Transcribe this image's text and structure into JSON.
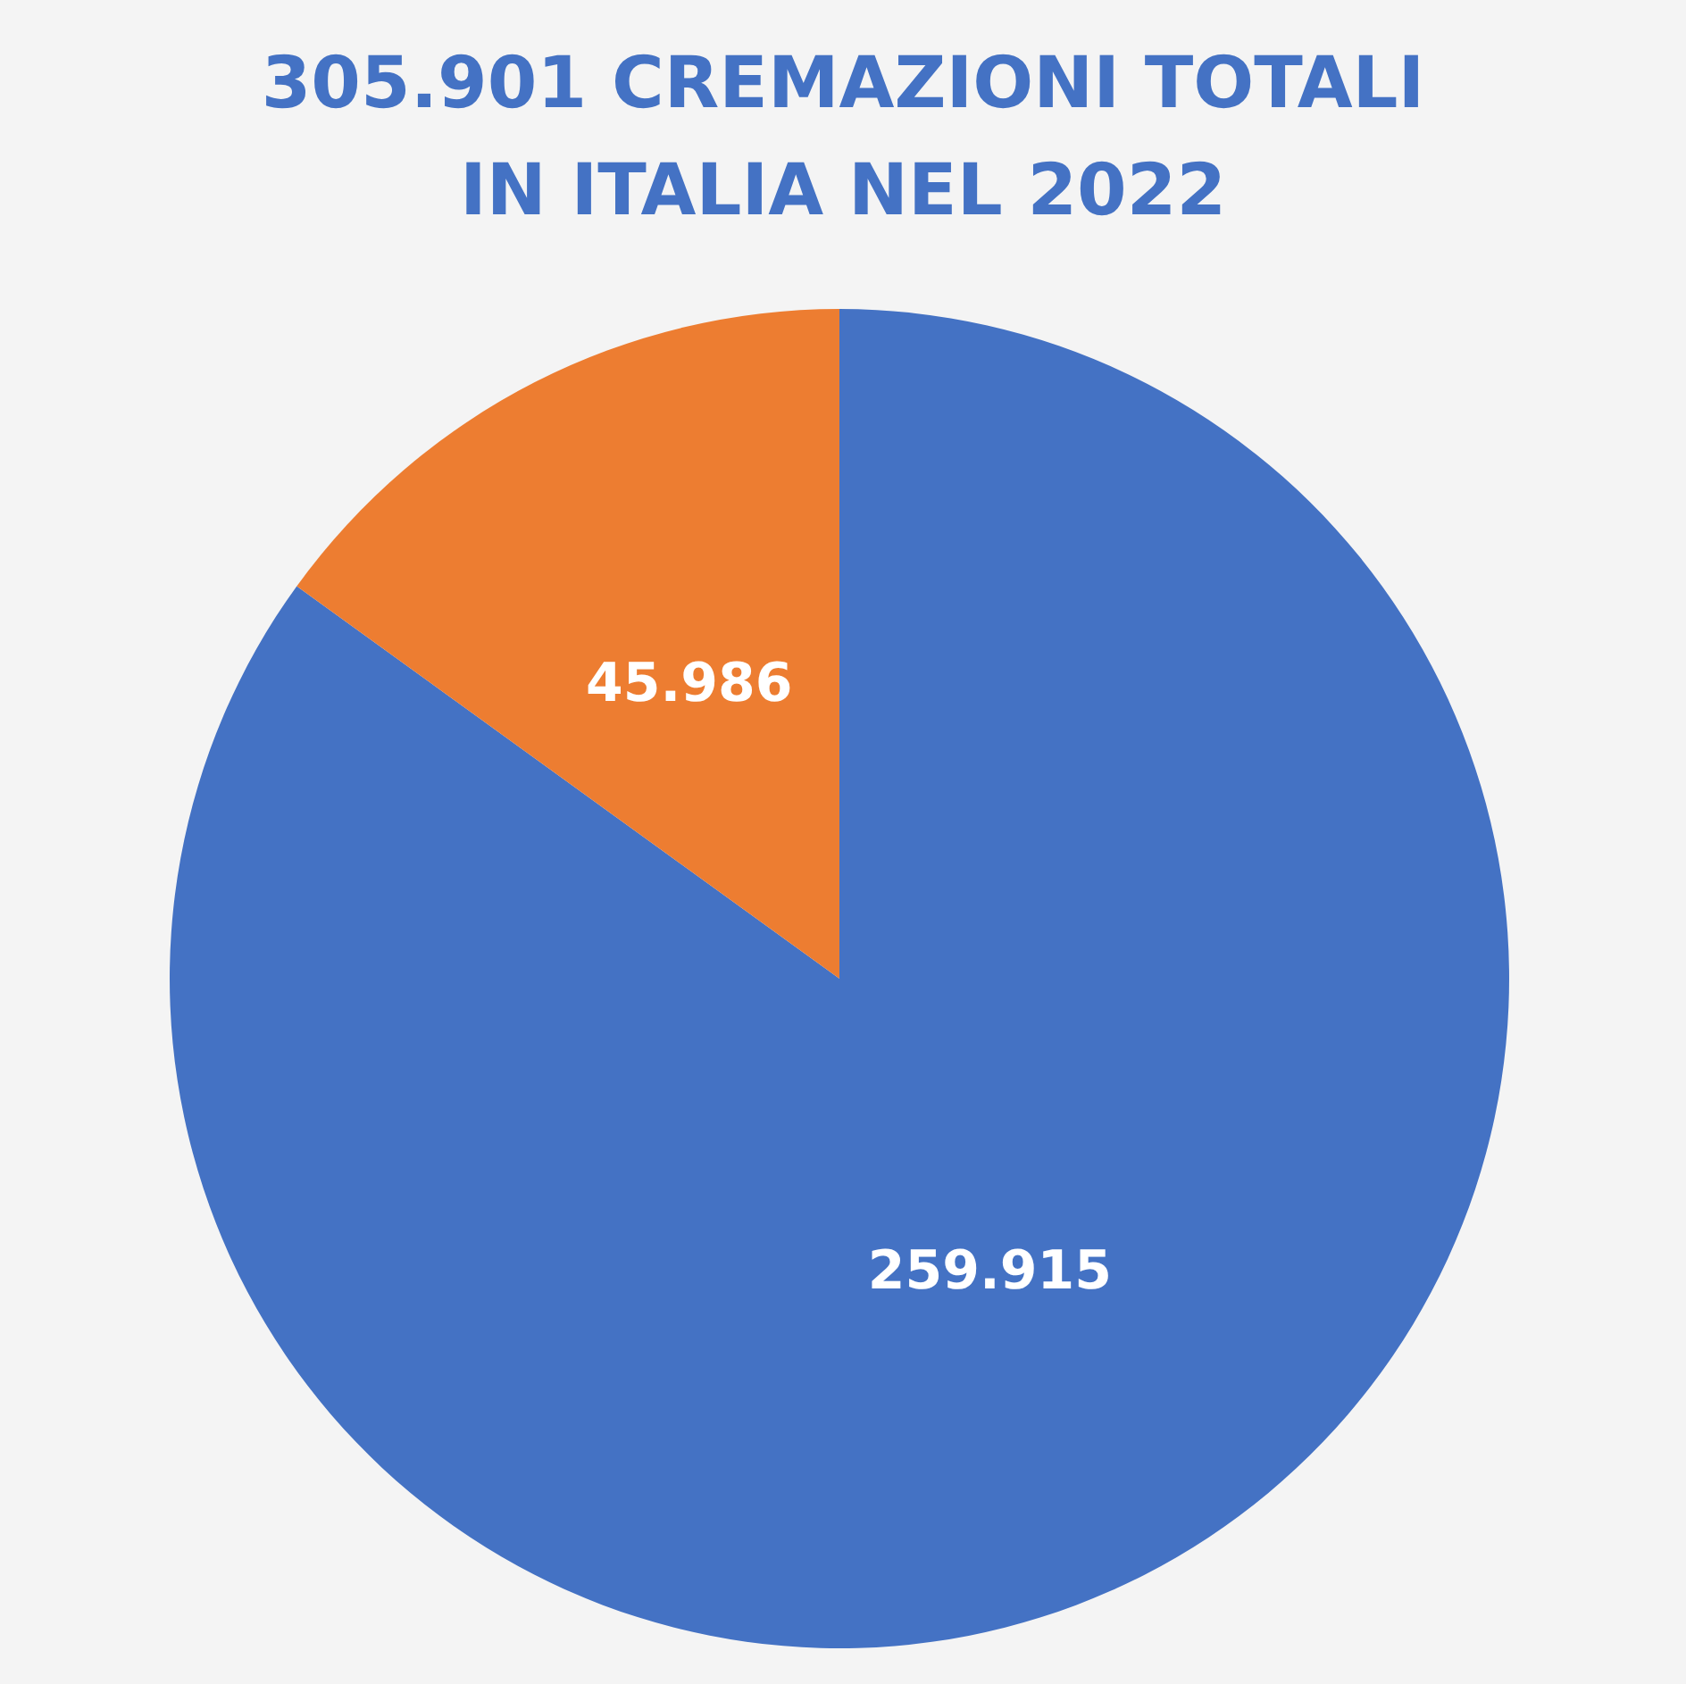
{
  "chart_data": {
    "type": "pie",
    "title": "305.901 CREMAZIONI TOTALI\nIN ITALIA NEL 2022",
    "categories": [
      null,
      null
    ],
    "values": [
      259915,
      45986
    ],
    "colors": [
      "#4472c4",
      "#ed7d31"
    ],
    "value_labels": [
      "259.915",
      "45.986"
    ]
  }
}
